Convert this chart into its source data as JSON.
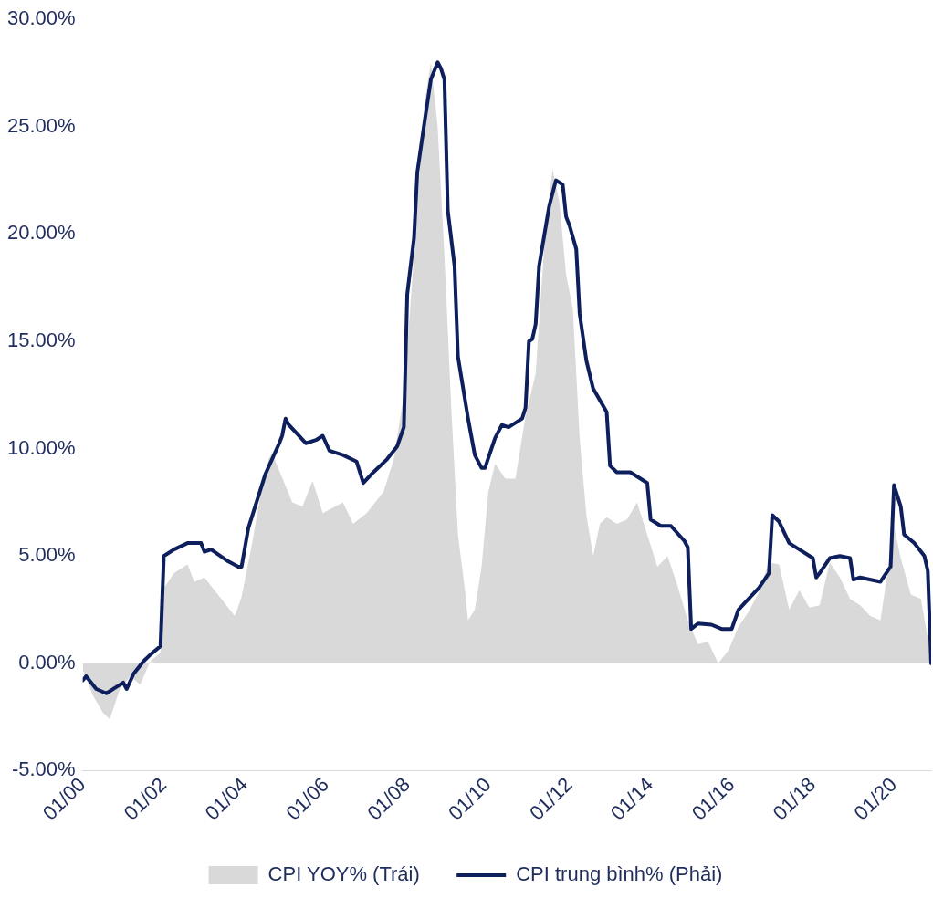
{
  "chart_data": {
    "type": "line",
    "xlim": [
      "2000-01",
      "2020-12"
    ],
    "ylim": [
      -5,
      30
    ],
    "yticks": [
      {
        "value": -5,
        "label": "-5.00%"
      },
      {
        "value": 0,
        "label": "0.00%"
      },
      {
        "value": 5,
        "label": "5.00%"
      },
      {
        "value": 10,
        "label": "10.00%"
      },
      {
        "value": 15,
        "label": "15.00%"
      },
      {
        "value": 20,
        "label": "20.00%"
      },
      {
        "value": 25,
        "label": "25.00%"
      },
      {
        "value": 30,
        "label": "30.00%"
      }
    ],
    "xticks": [
      {
        "value": "2000-01",
        "label": "01/00"
      },
      {
        "value": "2002-01",
        "label": "01/02"
      },
      {
        "value": "2004-01",
        "label": "01/04"
      },
      {
        "value": "2006-01",
        "label": "01/06"
      },
      {
        "value": "2008-01",
        "label": "01/08"
      },
      {
        "value": "2010-01",
        "label": "01/10"
      },
      {
        "value": "2012-01",
        "label": "01/12"
      },
      {
        "value": "2014-01",
        "label": "01/14"
      },
      {
        "value": "2016-01",
        "label": "01/16"
      },
      {
        "value": "2018-01",
        "label": "01/18"
      },
      {
        "value": "2020-01",
        "label": "01/20"
      }
    ],
    "grid": false,
    "legend": "bottom",
    "marker": "none",
    "series": [
      {
        "name": "CPI YOY% (Trái)",
        "type": "area",
        "color": "#d9d9d9",
        "x": [
          "2000-01",
          "2000-04",
          "2000-07",
          "2000-09",
          "2000-12",
          "2001-03",
          "2001-06",
          "2001-09",
          "2001-12",
          "2002-01",
          "2002-04",
          "2002-08",
          "2002-10",
          "2003-01",
          "2003-06",
          "2003-10",
          "2003-12",
          "2004-03",
          "2004-06",
          "2004-08",
          "2004-09",
          "2005-03",
          "2005-06",
          "2005-09",
          "2005-12",
          "2006-06",
          "2006-09",
          "2007-01",
          "2007-06",
          "2007-09",
          "2007-12",
          "2008-03",
          "2008-06",
          "2008-08",
          "2008-10",
          "2008-12",
          "2009-02",
          "2009-04",
          "2009-06",
          "2009-07",
          "2009-09",
          "2009-11",
          "2010-01",
          "2010-03",
          "2010-06",
          "2010-09",
          "2010-12",
          "2011-03",
          "2011-06",
          "2011-08",
          "2011-10",
          "2011-12",
          "2012-02",
          "2012-04",
          "2012-06",
          "2012-08",
          "2012-10",
          "2012-12",
          "2013-03",
          "2013-06",
          "2013-09",
          "2013-12",
          "2014-03",
          "2014-06",
          "2014-09",
          "2014-12",
          "2015-03",
          "2015-06",
          "2015-09",
          "2015-12",
          "2016-03",
          "2016-06",
          "2016-09",
          "2016-12",
          "2017-03",
          "2017-06",
          "2017-09",
          "2017-12",
          "2018-03",
          "2018-06",
          "2018-09",
          "2018-12",
          "2019-03",
          "2019-06",
          "2019-09",
          "2019-12",
          "2020-01",
          "2020-03",
          "2020-06",
          "2020-09",
          "2020-12"
        ],
        "values": [
          -0.3,
          -1.5,
          -2.3,
          -2.6,
          -1.2,
          -0.6,
          -1.0,
          0.1,
          0.5,
          3.5,
          4.2,
          4.6,
          3.8,
          4.0,
          3.0,
          2.2,
          3.1,
          5.5,
          8.2,
          9.5,
          9.8,
          7.5,
          7.3,
          8.5,
          7.0,
          7.5,
          6.5,
          7.0,
          8.0,
          9.5,
          12.5,
          19.0,
          26.0,
          28.0,
          25.0,
          19.0,
          12.0,
          6.0,
          3.5,
          2.0,
          2.5,
          4.5,
          8.0,
          9.3,
          8.6,
          8.6,
          11.5,
          13.5,
          20.5,
          23.0,
          21.5,
          18.1,
          16.5,
          10.5,
          6.9,
          5.0,
          6.5,
          6.8,
          6.5,
          6.7,
          7.5,
          6.0,
          4.5,
          5.0,
          3.6,
          2.0,
          0.9,
          1.0,
          0.0,
          0.6,
          1.7,
          2.4,
          3.3,
          4.7,
          4.6,
          2.5,
          3.4,
          2.6,
          2.7,
          4.7,
          4.0,
          3.0,
          2.7,
          2.2,
          2.0,
          5.2,
          6.4,
          4.9,
          3.2,
          3.0,
          0.2
        ]
      },
      {
        "name": "CPI trung bình% (Phải)",
        "type": "line",
        "color": "#0d1f5c",
        "x": [
          "2000-01",
          "2000-02",
          "2000-05",
          "2000-08",
          "2000-11",
          "2001-01",
          "2001-02",
          "2001-04",
          "2001-07",
          "2001-09",
          "2001-12",
          "2002-01",
          "2002-04",
          "2002-08",
          "2002-12",
          "2003-01",
          "2003-03",
          "2003-08",
          "2003-11",
          "2003-12",
          "2004-02",
          "2004-07",
          "2004-11",
          "2004-12",
          "2005-01",
          "2005-02",
          "2005-07",
          "2005-10",
          "2005-12",
          "2006-02",
          "2006-06",
          "2006-10",
          "2006-12",
          "2007-03",
          "2007-07",
          "2007-10",
          "2007-12",
          "2008-01",
          "2008-03",
          "2008-04",
          "2008-06",
          "2008-08",
          "2008-10",
          "2008-11",
          "2008-12",
          "2009-01",
          "2009-03",
          "2009-04",
          "2009-07",
          "2009-09",
          "2009-11",
          "2009-12",
          "2010-03",
          "2010-05",
          "2010-07",
          "2010-11",
          "2010-12",
          "2011-01",
          "2011-02",
          "2011-03",
          "2011-04",
          "2011-07",
          "2011-09",
          "2011-11",
          "2011-12",
          "2012-01",
          "2012-03",
          "2012-04",
          "2012-06",
          "2012-08",
          "2012-12",
          "2013-01",
          "2013-03",
          "2013-05",
          "2013-07",
          "2013-10",
          "2013-12",
          "2014-01",
          "2014-04",
          "2014-07",
          "2014-11",
          "2014-12",
          "2015-01",
          "2015-03",
          "2015-07",
          "2015-10",
          "2016-01",
          "2016-03",
          "2016-06",
          "2016-09",
          "2016-12",
          "2017-01",
          "2017-03",
          "2017-06",
          "2017-09",
          "2018-01",
          "2018-02",
          "2018-03",
          "2018-06",
          "2018-09",
          "2018-12",
          "2019-01",
          "2019-03",
          "2019-09",
          "2019-12",
          "2020-01",
          "2020-03",
          "2020-04",
          "2020-07",
          "2020-10",
          "2020-11",
          "2020-12"
        ],
        "values": [
          -0.8,
          -0.6,
          -1.2,
          -1.4,
          -1.1,
          -0.9,
          -1.2,
          -0.5,
          0.1,
          0.4,
          0.8,
          5.0,
          5.3,
          5.6,
          5.6,
          5.2,
          5.3,
          4.75,
          4.5,
          4.5,
          6.3,
          8.8,
          10.2,
          10.6,
          11.4,
          11.1,
          10.25,
          10.4,
          10.6,
          9.9,
          9.7,
          9.4,
          8.4,
          8.9,
          9.5,
          10.1,
          11.0,
          17.2,
          19.8,
          22.9,
          25.1,
          27.2,
          28.0,
          27.7,
          27.2,
          21.1,
          18.5,
          14.3,
          11.4,
          9.7,
          9.1,
          9.1,
          10.5,
          11.1,
          11.0,
          11.4,
          11.9,
          15.0,
          15.1,
          15.8,
          18.5,
          21.3,
          22.5,
          22.3,
          20.8,
          20.4,
          19.3,
          16.3,
          14.1,
          12.8,
          11.7,
          9.2,
          8.9,
          8.9,
          8.9,
          8.6,
          8.4,
          6.7,
          6.4,
          6.4,
          5.7,
          5.4,
          1.6,
          1.85,
          1.8,
          1.6,
          1.6,
          2.5,
          3.0,
          3.5,
          4.2,
          6.9,
          6.6,
          5.6,
          5.3,
          4.9,
          4.0,
          4.2,
          4.9,
          5.0,
          4.9,
          3.9,
          4.0,
          3.8,
          4.5,
          8.3,
          7.3,
          6.0,
          5.6,
          5.0,
          4.3,
          0
        ]
      }
    ]
  }
}
